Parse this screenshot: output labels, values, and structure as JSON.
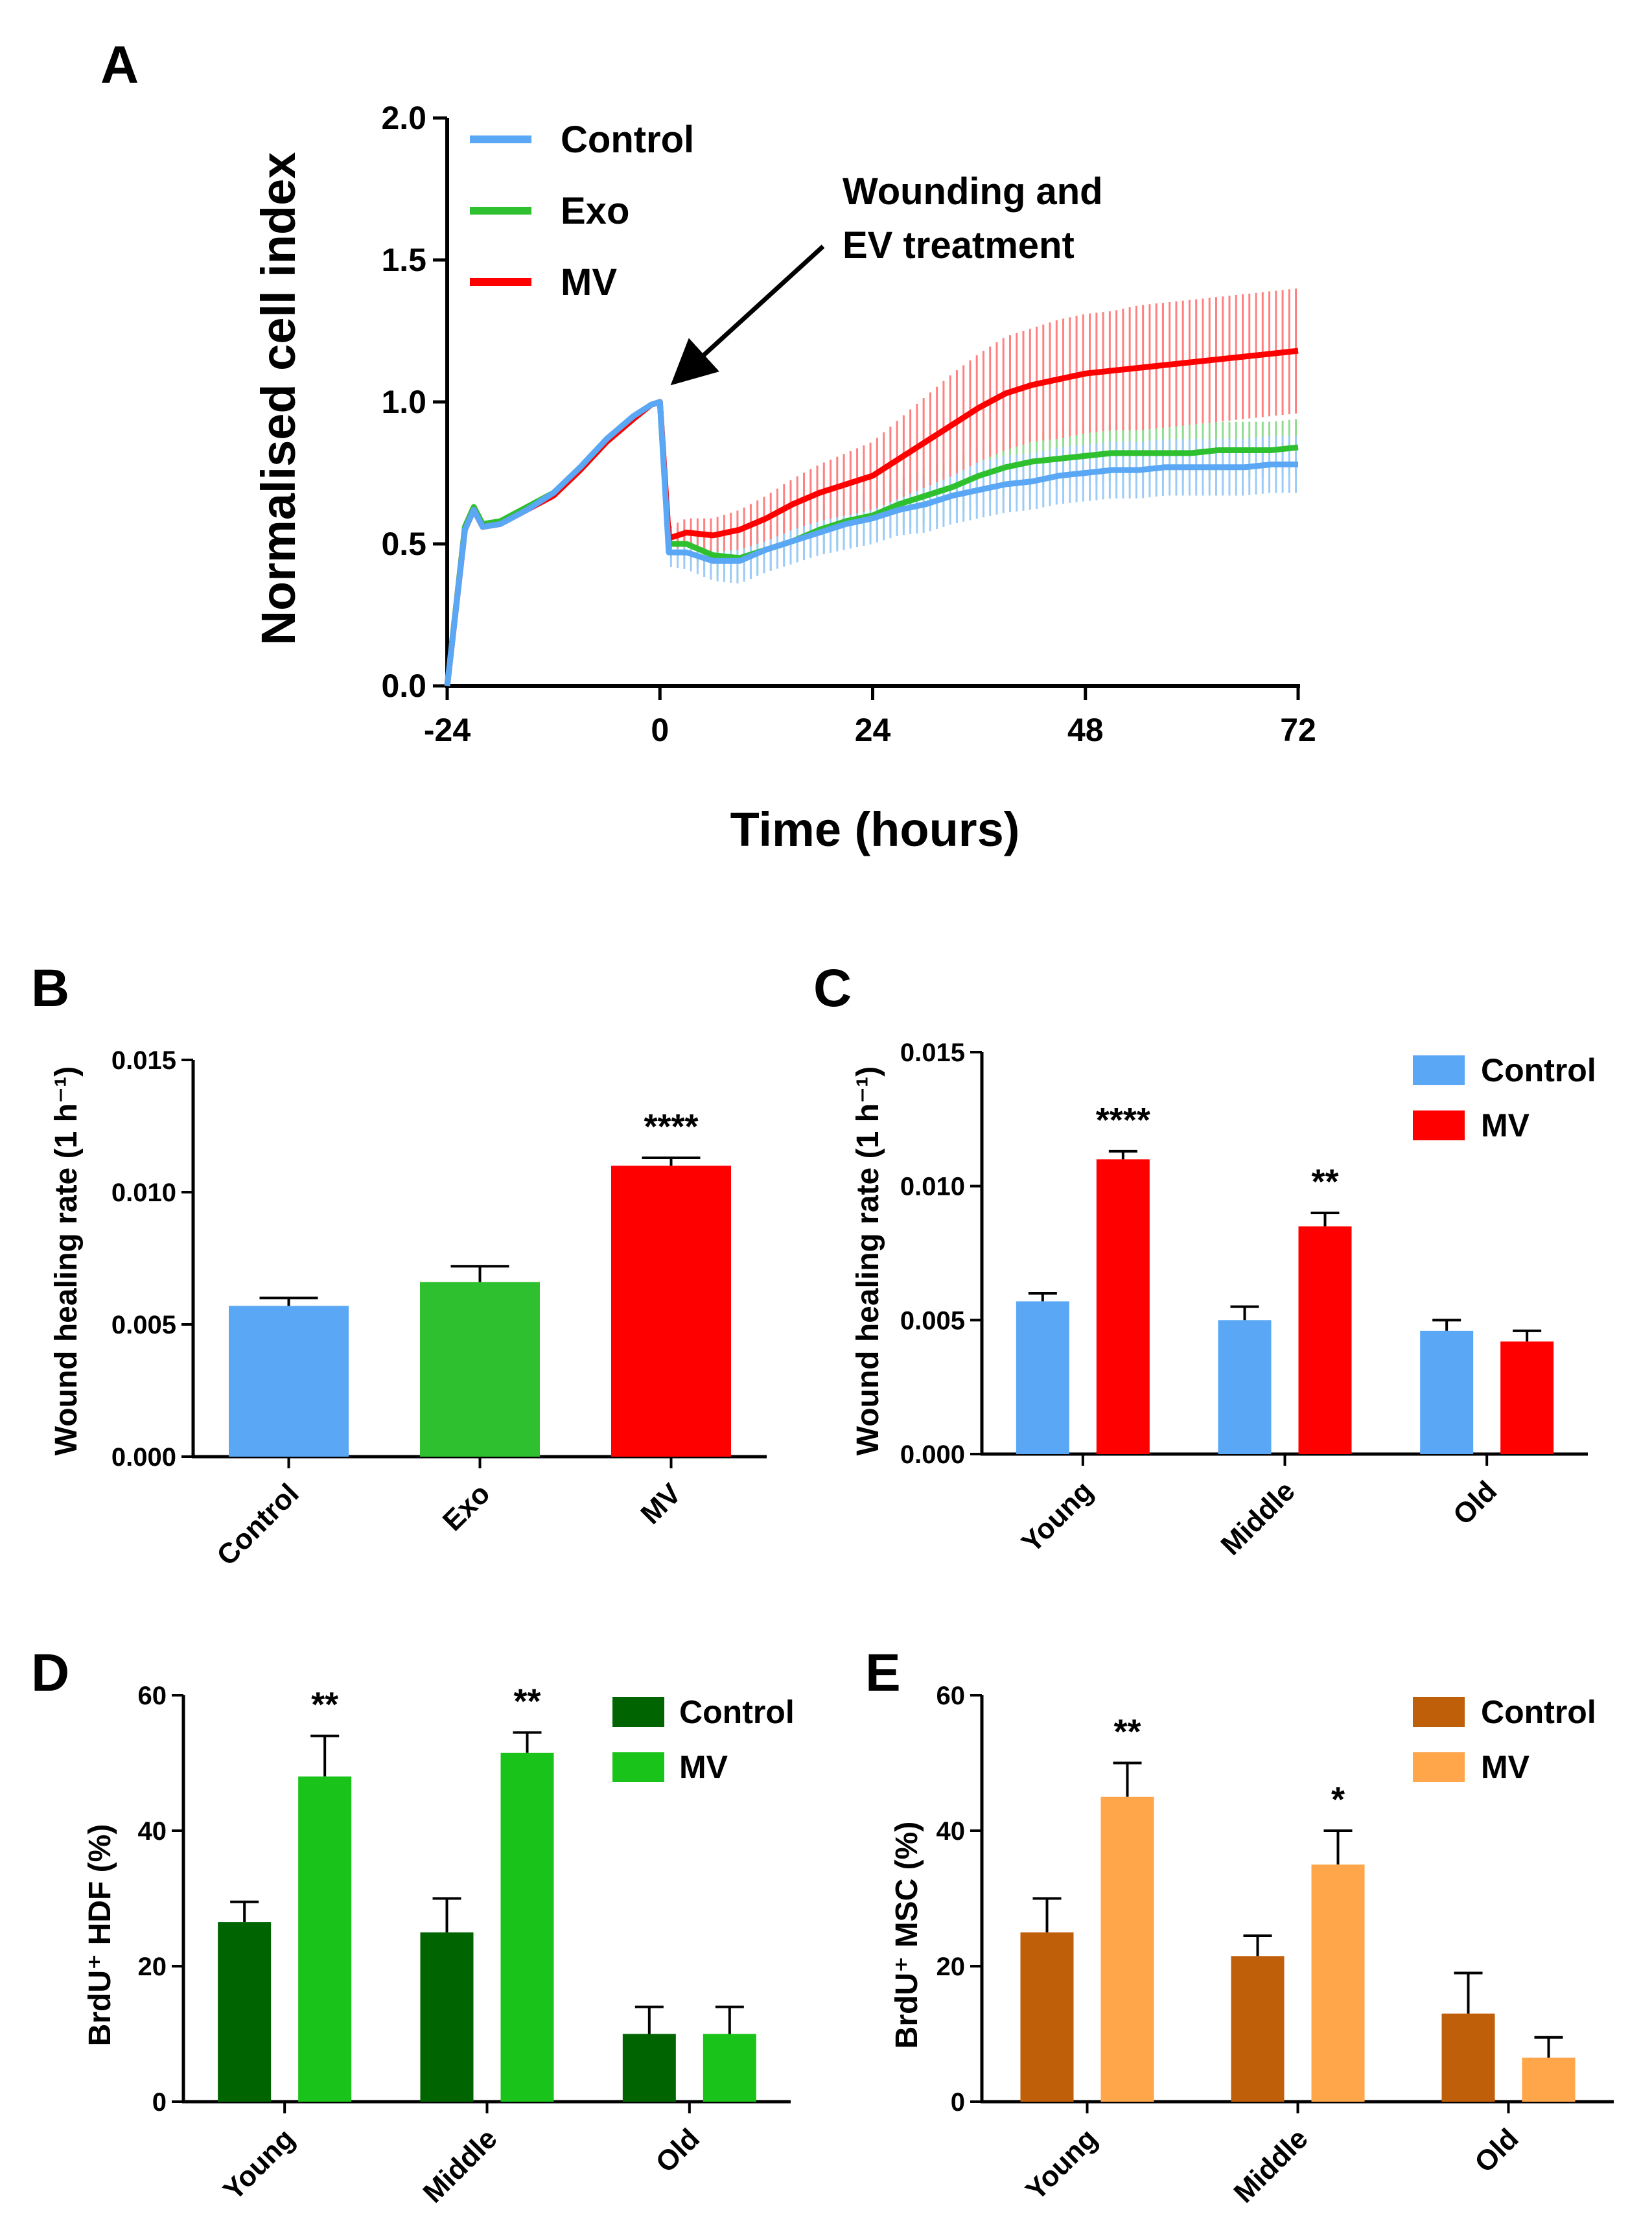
{
  "colors": {
    "control_blue": "#5aa7f5",
    "exo_green": "#2fc02f",
    "mv_red": "#ff0000",
    "hdf_control": "#006400",
    "hdf_mv": "#19c319",
    "msc_control": "#c05f0a",
    "msc_mv": "#ffa54a"
  },
  "chart_data": [
    {
      "id": "A",
      "panel_label": "A",
      "type": "line",
      "ylabel": "Normalised cell index",
      "xlabel": "Time (hours)",
      "xlim": [
        -24,
        72
      ],
      "ylim": [
        0,
        2.0
      ],
      "xticks": [
        "-24",
        "0",
        "24",
        "48",
        "72"
      ],
      "yticks": [
        "0.0",
        "0.5",
        "1.0",
        "1.5",
        "2.0"
      ],
      "annotation": [
        "Wounding and",
        "EV treatment"
      ],
      "x": [
        -24,
        -22,
        -21,
        -20,
        -18,
        -15,
        -12,
        -9,
        -6,
        -3,
        -1,
        0,
        1,
        3,
        6,
        9,
        12,
        15,
        18,
        21,
        24,
        27,
        30,
        33,
        36,
        39,
        42,
        45,
        48,
        51,
        54,
        57,
        60,
        63,
        66,
        69,
        72
      ],
      "series": [
        {
          "name": "Control",
          "values": [
            0.0,
            0.55,
            0.62,
            0.56,
            0.57,
            0.62,
            0.68,
            0.77,
            0.87,
            0.95,
            0.99,
            1.0,
            0.47,
            0.47,
            0.44,
            0.44,
            0.48,
            0.51,
            0.54,
            0.57,
            0.59,
            0.62,
            0.64,
            0.67,
            0.69,
            0.71,
            0.72,
            0.74,
            0.75,
            0.76,
            0.76,
            0.77,
            0.77,
            0.77,
            0.77,
            0.78,
            0.78
          ],
          "err": [
            0.0,
            0.01,
            0.01,
            0.01,
            0.01,
            0.01,
            0.01,
            0.01,
            0.01,
            0.01,
            0.01,
            0.0,
            0.05,
            0.06,
            0.07,
            0.08,
            0.08,
            0.08,
            0.08,
            0.09,
            0.09,
            0.09,
            0.1,
            0.1,
            0.1,
            0.1,
            0.1,
            0.1,
            0.1,
            0.1,
            0.1,
            0.1,
            0.1,
            0.1,
            0.1,
            0.1,
            0.1
          ]
        },
        {
          "name": "Exo",
          "values": [
            0.0,
            0.56,
            0.63,
            0.57,
            0.58,
            0.63,
            0.68,
            0.76,
            0.86,
            0.94,
            0.99,
            1.0,
            0.5,
            0.5,
            0.46,
            0.45,
            0.48,
            0.51,
            0.55,
            0.58,
            0.6,
            0.64,
            0.67,
            0.7,
            0.74,
            0.77,
            0.79,
            0.8,
            0.81,
            0.82,
            0.82,
            0.82,
            0.82,
            0.83,
            0.83,
            0.83,
            0.84
          ],
          "err": [
            0.0,
            0.01,
            0.01,
            0.01,
            0.01,
            0.01,
            0.01,
            0.01,
            0.01,
            0.01,
            0.01,
            0.0,
            0.05,
            0.06,
            0.07,
            0.08,
            0.08,
            0.08,
            0.08,
            0.09,
            0.09,
            0.09,
            0.1,
            0.1,
            0.1,
            0.1,
            0.1,
            0.1,
            0.1,
            0.1,
            0.1,
            0.1,
            0.1,
            0.1,
            0.1,
            0.1,
            0.1
          ]
        },
        {
          "name": "MV",
          "values": [
            0.0,
            0.55,
            0.62,
            0.56,
            0.57,
            0.62,
            0.67,
            0.76,
            0.86,
            0.94,
            0.99,
            1.0,
            0.52,
            0.54,
            0.53,
            0.55,
            0.59,
            0.64,
            0.68,
            0.71,
            0.74,
            0.8,
            0.86,
            0.92,
            0.98,
            1.03,
            1.06,
            1.08,
            1.1,
            1.11,
            1.12,
            1.13,
            1.14,
            1.15,
            1.16,
            1.17,
            1.18
          ],
          "err": [
            0.0,
            0.01,
            0.01,
            0.01,
            0.01,
            0.01,
            0.01,
            0.01,
            0.01,
            0.01,
            0.01,
            0.0,
            0.04,
            0.05,
            0.06,
            0.07,
            0.08,
            0.09,
            0.1,
            0.11,
            0.12,
            0.14,
            0.16,
            0.18,
            0.19,
            0.2,
            0.2,
            0.21,
            0.21,
            0.21,
            0.22,
            0.22,
            0.22,
            0.22,
            0.22,
            0.22,
            0.22
          ]
        }
      ]
    },
    {
      "id": "B",
      "panel_label": "B",
      "type": "bar",
      "ylabel": "Wound healing rate (1 h⁻¹)",
      "ylim": [
        0,
        0.015
      ],
      "yticks": [
        "0.000",
        "0.005",
        "0.010",
        "0.015"
      ],
      "categories": [
        "Control",
        "Exo",
        "MV"
      ],
      "values": [
        0.0057,
        0.0066,
        0.011
      ],
      "err": [
        0.0003,
        0.0006,
        0.0003
      ],
      "significance": [
        "",
        "",
        "****"
      ]
    },
    {
      "id": "C",
      "panel_label": "C",
      "type": "bar",
      "ylabel": "Wound healing rate (1 h⁻¹)",
      "ylim": [
        0,
        0.015
      ],
      "yticks": [
        "0.000",
        "0.005",
        "0.010",
        "0.015"
      ],
      "categories": [
        "Young",
        "Middle",
        "Old"
      ],
      "series": [
        {
          "name": "Control",
          "values": [
            0.0057,
            0.005,
            0.0046
          ],
          "err": [
            0.0003,
            0.0005,
            0.0004
          ]
        },
        {
          "name": "MV",
          "values": [
            0.011,
            0.0085,
            0.0042
          ],
          "err": [
            0.0003,
            0.0005,
            0.0004
          ]
        }
      ],
      "significance": [
        "****",
        "**",
        ""
      ]
    },
    {
      "id": "D",
      "panel_label": "D",
      "type": "bar",
      "ylabel": "BrdU⁺ HDF (%)",
      "ylim": [
        0,
        60
      ],
      "yticks": [
        "0",
        "20",
        "40",
        "60"
      ],
      "categories": [
        "Young",
        "Middle",
        "Old"
      ],
      "series": [
        {
          "name": "Control",
          "values": [
            26.5,
            25,
            10
          ],
          "err": [
            3,
            5,
            4
          ]
        },
        {
          "name": "MV",
          "values": [
            48,
            51.5,
            10
          ],
          "err": [
            6,
            3,
            4
          ]
        }
      ],
      "significance": [
        "**",
        "**",
        ""
      ]
    },
    {
      "id": "E",
      "panel_label": "E",
      "type": "bar",
      "ylabel": "BrdU⁺ MSC (%)",
      "ylim": [
        0,
        60
      ],
      "yticks": [
        "0",
        "20",
        "40",
        "60"
      ],
      "categories": [
        "Young",
        "Middle",
        "Old"
      ],
      "series": [
        {
          "name": "Control",
          "values": [
            25,
            21.5,
            13
          ],
          "err": [
            5,
            3,
            6
          ]
        },
        {
          "name": "MV",
          "values": [
            45,
            35,
            6.5
          ],
          "err": [
            5,
            5,
            3
          ]
        }
      ],
      "significance": [
        "**",
        "*",
        ""
      ]
    }
  ]
}
